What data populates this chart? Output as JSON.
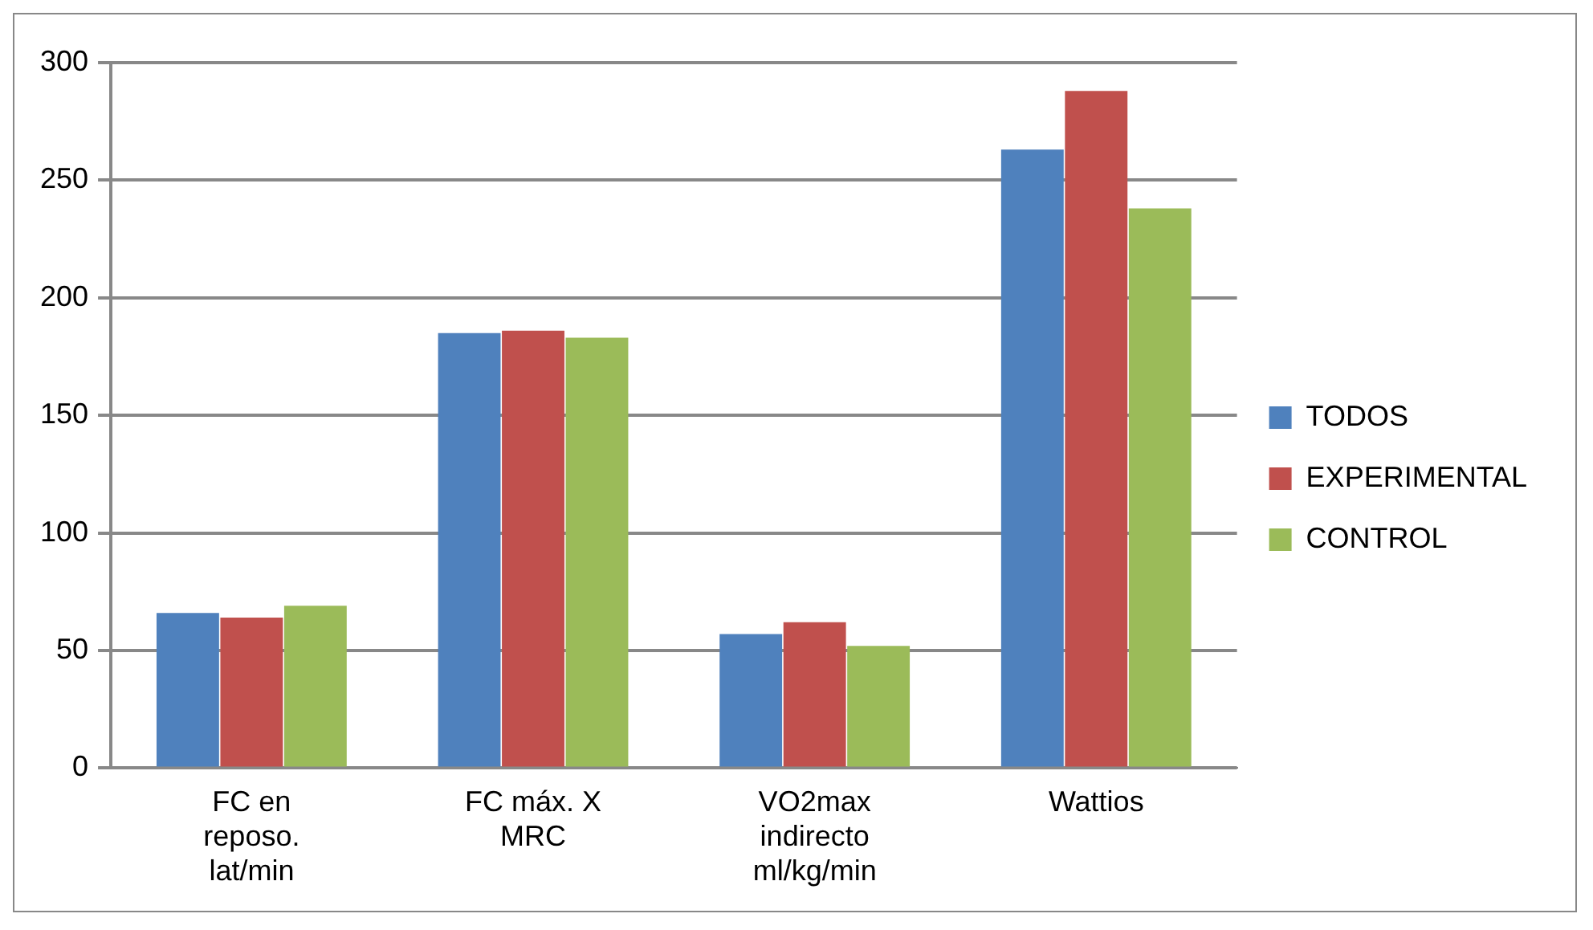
{
  "chart_data": {
    "type": "bar",
    "categories": [
      "FC en reposo. lat/min",
      "FC máx. X MRC",
      "VO2max indirecto ml/kg/min",
      "Wattios"
    ],
    "series": [
      {
        "name": "TODOS",
        "color": "#4f81bd",
        "values": [
          66,
          185,
          57,
          263
        ]
      },
      {
        "name": "EXPERIMENTAL",
        "color": "#c0504d",
        "values": [
          64,
          186,
          62,
          288
        ]
      },
      {
        "name": "CONTROL",
        "color": "#9bbb59",
        "values": [
          69,
          183,
          52,
          238
        ]
      }
    ],
    "ylim": [
      0,
      300
    ],
    "yticks": [
      0,
      50,
      100,
      150,
      200,
      250,
      300
    ],
    "grid": "y",
    "legend": "right"
  }
}
